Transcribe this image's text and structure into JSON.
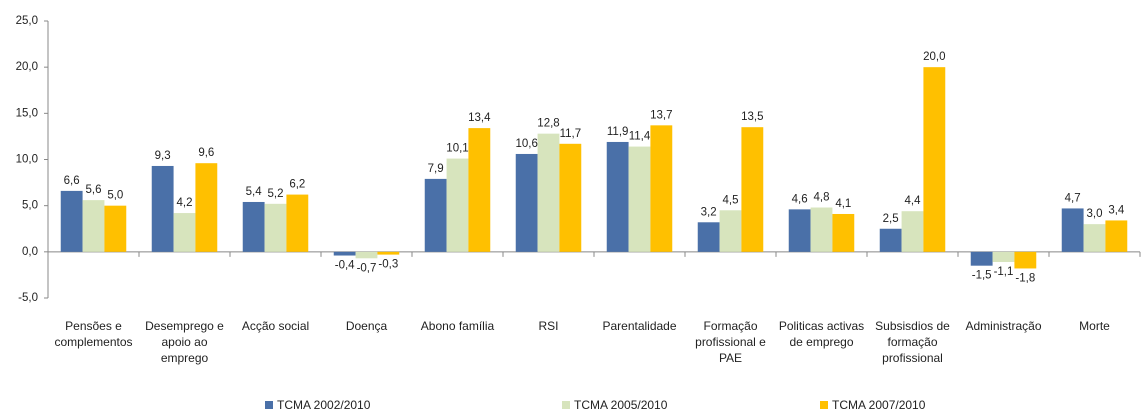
{
  "chart_data": {
    "type": "bar",
    "categories": [
      "Pensões e complementos",
      "Desemprego e apoio ao emprego",
      "Acção social",
      "Doença",
      "Abono família",
      "RSI",
      "Parentalidade",
      "Formação profissional e PAE",
      "Politicas activas de emprego",
      "Subsisdios de formação profissional",
      "Administração",
      "Morte"
    ],
    "series": [
      {
        "name": "TCMA 2002/2010",
        "color": "#4a70a8",
        "values": [
          6.6,
          9.3,
          5.4,
          -0.4,
          7.9,
          10.6,
          11.9,
          3.2,
          4.6,
          2.5,
          -1.5,
          4.7
        ],
        "value_labels": [
          "6,6",
          "9,3",
          "5,4",
          "-0,4",
          "7,9",
          "10,6",
          "11,9",
          "3,2",
          "4,6",
          "2,5",
          "-1,5",
          "4,7"
        ]
      },
      {
        "name": "TCMA 2005/2010",
        "color": "#d7e4bd",
        "values": [
          5.6,
          4.2,
          5.2,
          -0.7,
          10.1,
          12.8,
          11.4,
          4.5,
          4.8,
          4.4,
          -1.1,
          3.0
        ],
        "value_labels": [
          "5,6",
          "4,2",
          "5,2",
          "-0,7",
          "10,1",
          "12,8",
          "11,4",
          "4,5",
          "4,8",
          "4,4",
          "-1,1",
          "3,0"
        ]
      },
      {
        "name": "TCMA 2007/2010",
        "color": "#ffc000",
        "values": [
          5.0,
          9.6,
          6.2,
          -0.3,
          13.4,
          11.7,
          13.7,
          13.5,
          4.1,
          20.0,
          -1.8,
          3.4
        ],
        "value_labels": [
          "5,0",
          "9,6",
          "6,2",
          "-0,3",
          "13,4",
          "11,7",
          "13,7",
          "13,5",
          "4,1",
          "20,0",
          "-1,8",
          "3,4"
        ]
      }
    ],
    "ylim": [
      -5,
      25
    ],
    "yticks": [
      {
        "value": -5,
        "label": "-5,0"
      },
      {
        "value": 0,
        "label": "0,0"
      },
      {
        "value": 5,
        "label": "5,0"
      },
      {
        "value": 10,
        "label": "10,0"
      },
      {
        "value": 15,
        "label": "15,0"
      },
      {
        "value": 20,
        "label": "20,0"
      },
      {
        "value": 25,
        "label": "25,0"
      }
    ],
    "grid": false,
    "legend": "bottom"
  }
}
